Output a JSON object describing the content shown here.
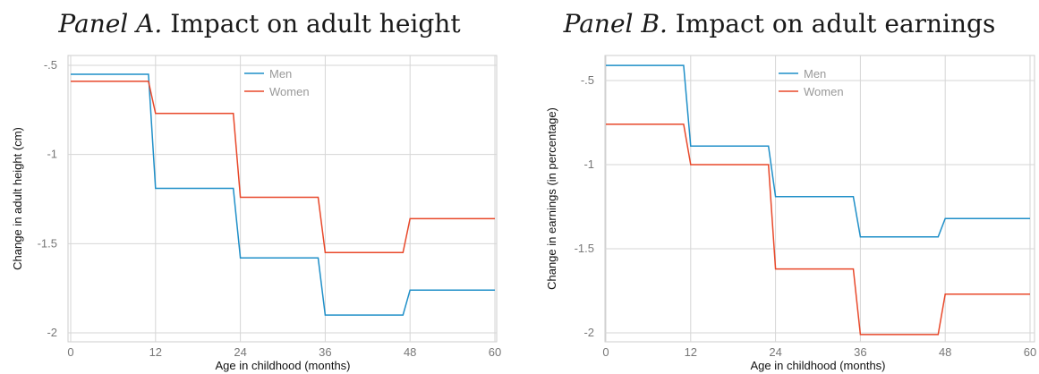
{
  "panels": [
    {
      "title_prefix": "Panel A.",
      "title_main": "Impact on adult height"
    },
    {
      "title_prefix": "Panel B.",
      "title_main": "Impact on adult earnings"
    }
  ],
  "chart_data": [
    {
      "type": "line",
      "xlabel": "Age in childhood (months)",
      "ylabel": "Change in adult height (cm)",
      "xlim": [
        0,
        60
      ],
      "ylim": [
        -2,
        -0.5
      ],
      "xticks": [
        0,
        12,
        24,
        36,
        48,
        60
      ],
      "yticks": [
        -2,
        -1.5,
        -1,
        -0.5
      ],
      "ytick_labels": [
        "-2",
        "-1.5",
        "-1",
        "-.5"
      ],
      "grid": true,
      "legend_position": "top-center",
      "series": [
        {
          "name": "Men",
          "color": "#1f8fc8",
          "x": [
            0,
            11,
            12,
            23,
            24,
            35,
            36,
            47,
            48,
            60
          ],
          "y": [
            -0.55,
            -0.55,
            -1.19,
            -1.19,
            -1.58,
            -1.58,
            -1.9,
            -1.9,
            -1.76,
            -1.76
          ]
        },
        {
          "name": "Women",
          "color": "#e8482a",
          "x": [
            0,
            11,
            12,
            23,
            24,
            35,
            36,
            47,
            48,
            60
          ],
          "y": [
            -0.59,
            -0.59,
            -0.77,
            -0.77,
            -1.24,
            -1.24,
            -1.55,
            -1.55,
            -1.36,
            -1.36
          ]
        }
      ]
    },
    {
      "type": "line",
      "xlabel": "Age in childhood (months)",
      "ylabel": "Change in earnings (in percentage)",
      "xlim": [
        0,
        60
      ],
      "ylim": [
        -2,
        -0.5
      ],
      "xticks": [
        0,
        12,
        24,
        36,
        48,
        60
      ],
      "yticks": [
        -2,
        -1.5,
        -1,
        -0.5
      ],
      "ytick_labels": [
        "-2",
        "-1.5",
        "-1",
        "-.5"
      ],
      "grid": true,
      "legend_position": "top-center",
      "series": [
        {
          "name": "Men",
          "color": "#1f8fc8",
          "x": [
            0,
            11,
            12,
            23,
            24,
            35,
            36,
            47,
            48,
            60
          ],
          "y": [
            -0.41,
            -0.41,
            -0.89,
            -0.89,
            -1.19,
            -1.19,
            -1.43,
            -1.43,
            -1.32,
            -1.32
          ]
        },
        {
          "name": "Women",
          "color": "#e8482a",
          "x": [
            0,
            11,
            12,
            23,
            24,
            35,
            36,
            47,
            48,
            60
          ],
          "y": [
            -0.76,
            -0.76,
            -1.0,
            -1.0,
            -1.62,
            -1.62,
            -2.01,
            -2.01,
            -1.77,
            -1.77
          ]
        }
      ]
    }
  ]
}
